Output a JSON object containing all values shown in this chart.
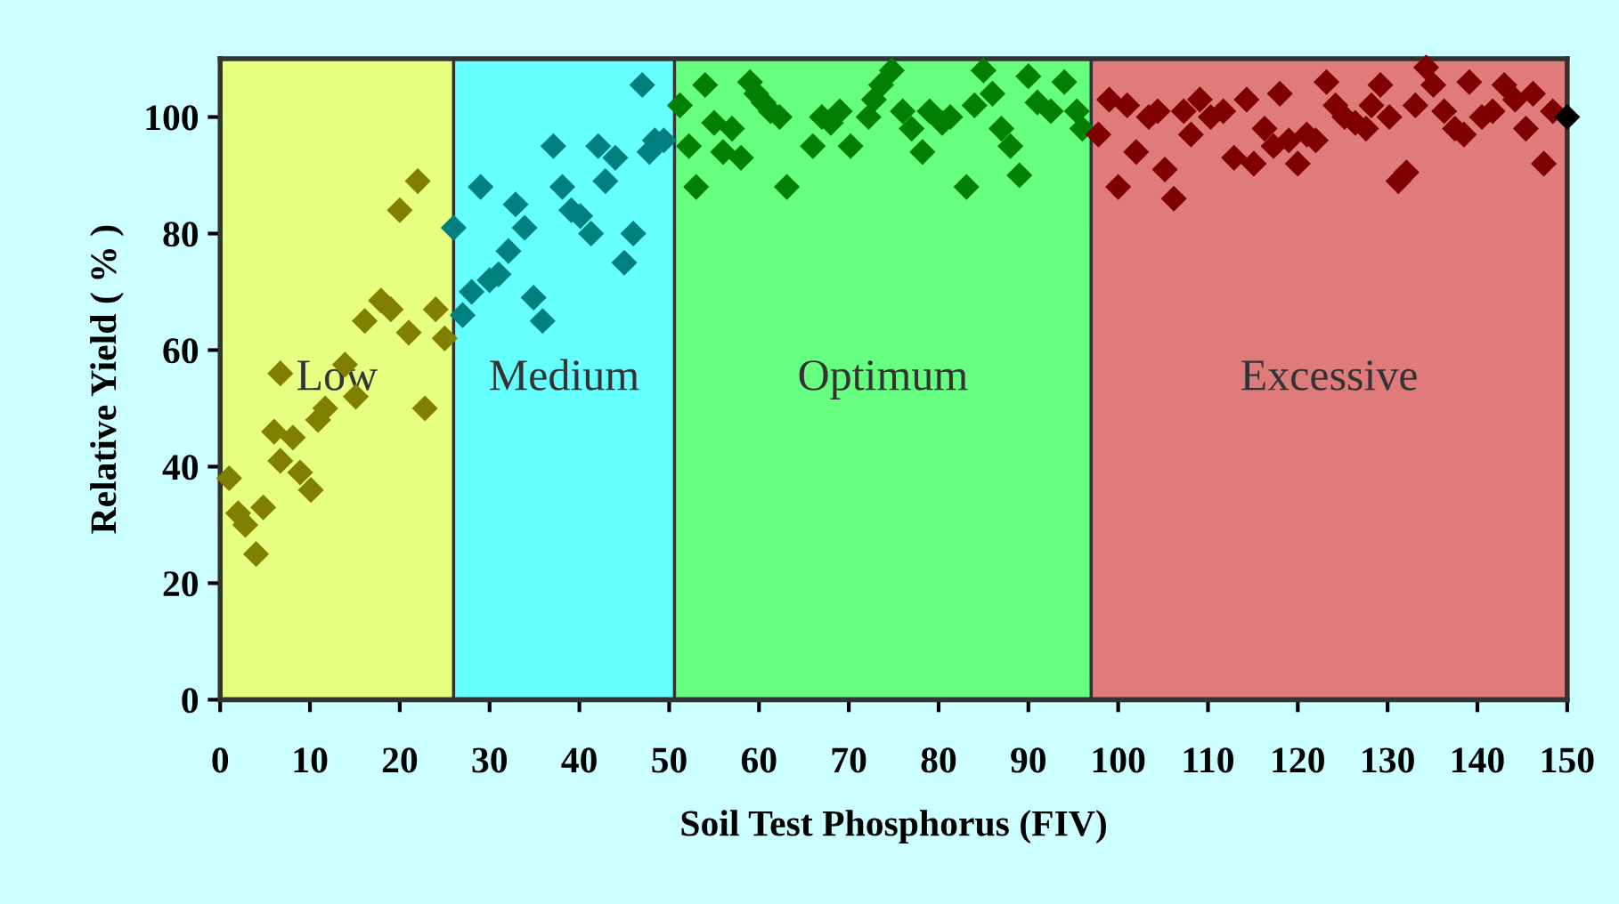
{
  "chart_data": {
    "type": "scatter",
    "xlabel": "Soil Test Phosphorus (FIV)",
    "ylabel": "Relative Yield ( % )",
    "xlim": [
      0,
      150
    ],
    "ylim": [
      0,
      110
    ],
    "xticks": [
      0,
      10,
      20,
      30,
      40,
      50,
      60,
      70,
      80,
      90,
      100,
      110,
      120,
      130,
      140,
      150
    ],
    "yticks": [
      0,
      20,
      40,
      60,
      80,
      100
    ],
    "grid": false,
    "legend": false,
    "marker": "diamond",
    "bands": [
      {
        "axis": "x",
        "from": 0,
        "to": 26,
        "label": "Low",
        "color": "#e6ff80"
      },
      {
        "axis": "x",
        "from": 26,
        "to": 50.6,
        "label": "Medium",
        "color": "#66ffff"
      },
      {
        "axis": "x",
        "from": 50.6,
        "to": 97,
        "label": "Optimum",
        "color": "#66ff80"
      },
      {
        "axis": "x",
        "from": 97,
        "to": 150,
        "label": "Excessive",
        "color": "#e07b7b"
      }
    ],
    "series": [
      {
        "color": "#807f00",
        "x": [
          1.0,
          2.0,
          2.8,
          4.0,
          4.8,
          6.0,
          6.7,
          6.7,
          8.1,
          8.9,
          10.1,
          10.9,
          11.7,
          13.9,
          15.1,
          16.1,
          17.9,
          19.0,
          20.0,
          21.0,
          22.0,
          22.8,
          24.0,
          25.0
        ],
        "values": [
          38,
          32,
          30,
          25,
          33,
          46,
          56,
          41,
          45,
          39,
          36,
          48,
          50,
          57.5,
          52,
          65,
          68.5,
          67,
          84,
          63,
          89,
          50,
          67,
          62
        ]
      },
      {
        "color": "#007f7f",
        "x": [
          26,
          27,
          28,
          29,
          30,
          31,
          32.1,
          32.9,
          33.9,
          34.9,
          35.9,
          37.1,
          38.1,
          39.1,
          40.1,
          41.3,
          42.1,
          42.9,
          44,
          45,
          46,
          47,
          47.8,
          48.4,
          49.4
        ],
        "values": [
          81,
          66,
          70,
          88,
          72,
          73,
          77,
          85,
          81,
          69,
          65,
          95,
          88,
          84,
          83,
          80,
          95,
          89,
          93,
          75,
          80,
          105.5,
          94,
          96,
          96
        ]
      },
      {
        "color": "#007f00",
        "x": [
          51.2,
          52.2,
          53,
          54,
          55,
          56,
          57,
          58,
          59,
          59.7,
          60.5,
          61.3,
          62.3,
          63.1,
          66,
          67,
          68,
          69,
          70.2,
          72.2,
          72.8,
          73.6,
          74.8,
          76,
          77,
          78.2,
          79,
          80.4,
          81.3,
          83.1,
          84,
          85,
          86,
          87,
          88,
          89,
          90,
          91,
          92.5,
          94,
          95.4,
          96
        ],
        "values": [
          102,
          95,
          88,
          105.5,
          99,
          94,
          98,
          93,
          106,
          104,
          102.5,
          101,
          100,
          88,
          95,
          100,
          99,
          101,
          95,
          100,
          103,
          105.5,
          108,
          101,
          98,
          94,
          101,
          99,
          100,
          88,
          102,
          108,
          104,
          98,
          95,
          90,
          107,
          102.5,
          101,
          106,
          101,
          98
        ]
      },
      {
        "color": "#7f0000",
        "x": [
          97.8,
          99,
          100,
          101,
          102,
          103.4,
          104.4,
          105.2,
          106.2,
          107.3,
          108.1,
          109.1,
          110.3,
          111.7,
          112.9,
          114.3,
          115.1,
          116.3,
          117.3,
          118,
          119,
          120,
          121,
          122,
          123.2,
          124.2,
          125.2,
          126.4,
          127.6,
          128.2,
          129.2,
          130.2,
          131.2,
          132.1,
          133.1,
          134.3,
          135.1,
          136.3,
          137.5,
          138.5,
          139.1,
          140.5,
          141.7,
          143,
          144.2,
          145.4,
          146.2,
          147.4,
          148.4
        ],
        "values": [
          97,
          103,
          88,
          102,
          94,
          100,
          101,
          91,
          86,
          101,
          97,
          103,
          100,
          101,
          93,
          103,
          92,
          98,
          95,
          104,
          96,
          92,
          97,
          96,
          106,
          102,
          100,
          99,
          98,
          102,
          105.5,
          100,
          89,
          90.5,
          102,
          108.5,
          105.5,
          101,
          98,
          97,
          106,
          100,
          101,
          105.5,
          103,
          98,
          104,
          92,
          101
        ]
      },
      {
        "color": "#000000",
        "x": [
          150
        ],
        "values": [
          100
        ]
      }
    ]
  }
}
